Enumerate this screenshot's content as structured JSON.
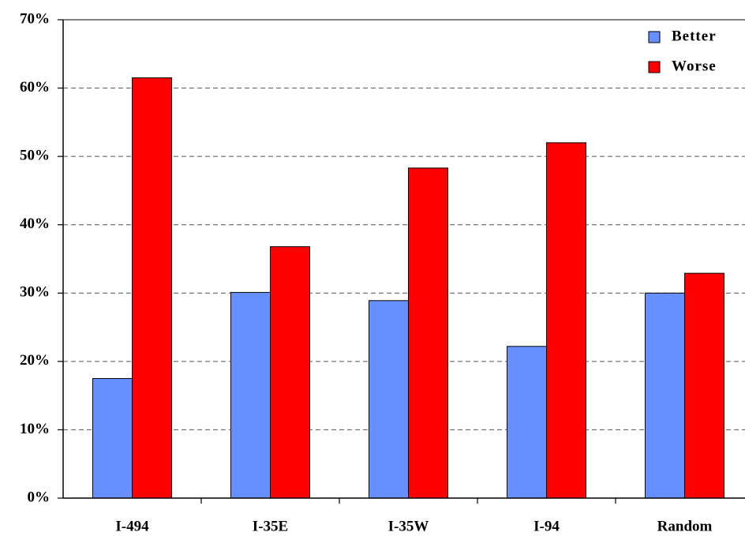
{
  "chart_data": {
    "type": "bar",
    "categories": [
      "I-494",
      "I-35E",
      "I-35W",
      "I-94",
      "Random"
    ],
    "series": [
      {
        "name": "Better",
        "color": "#6690ff",
        "values": [
          17.5,
          30.1,
          28.9,
          22.2,
          30.0
        ]
      },
      {
        "name": "Worse",
        "color": "#ff0000",
        "values": [
          61.5,
          36.8,
          48.3,
          52.0,
          32.9
        ]
      }
    ],
    "ylim": [
      0,
      70
    ],
    "yticks": [
      {
        "value": 0,
        "label": "0%"
      },
      {
        "value": 10,
        "label": "10%"
      },
      {
        "value": 20,
        "label": "20%"
      },
      {
        "value": 30,
        "label": "30%"
      },
      {
        "value": 40,
        "label": "40%"
      },
      {
        "value": 50,
        "label": "50%"
      },
      {
        "value": 60,
        "label": "60%"
      },
      {
        "value": 70,
        "label": "70%"
      }
    ],
    "grid": true,
    "legend": "top-right"
  }
}
